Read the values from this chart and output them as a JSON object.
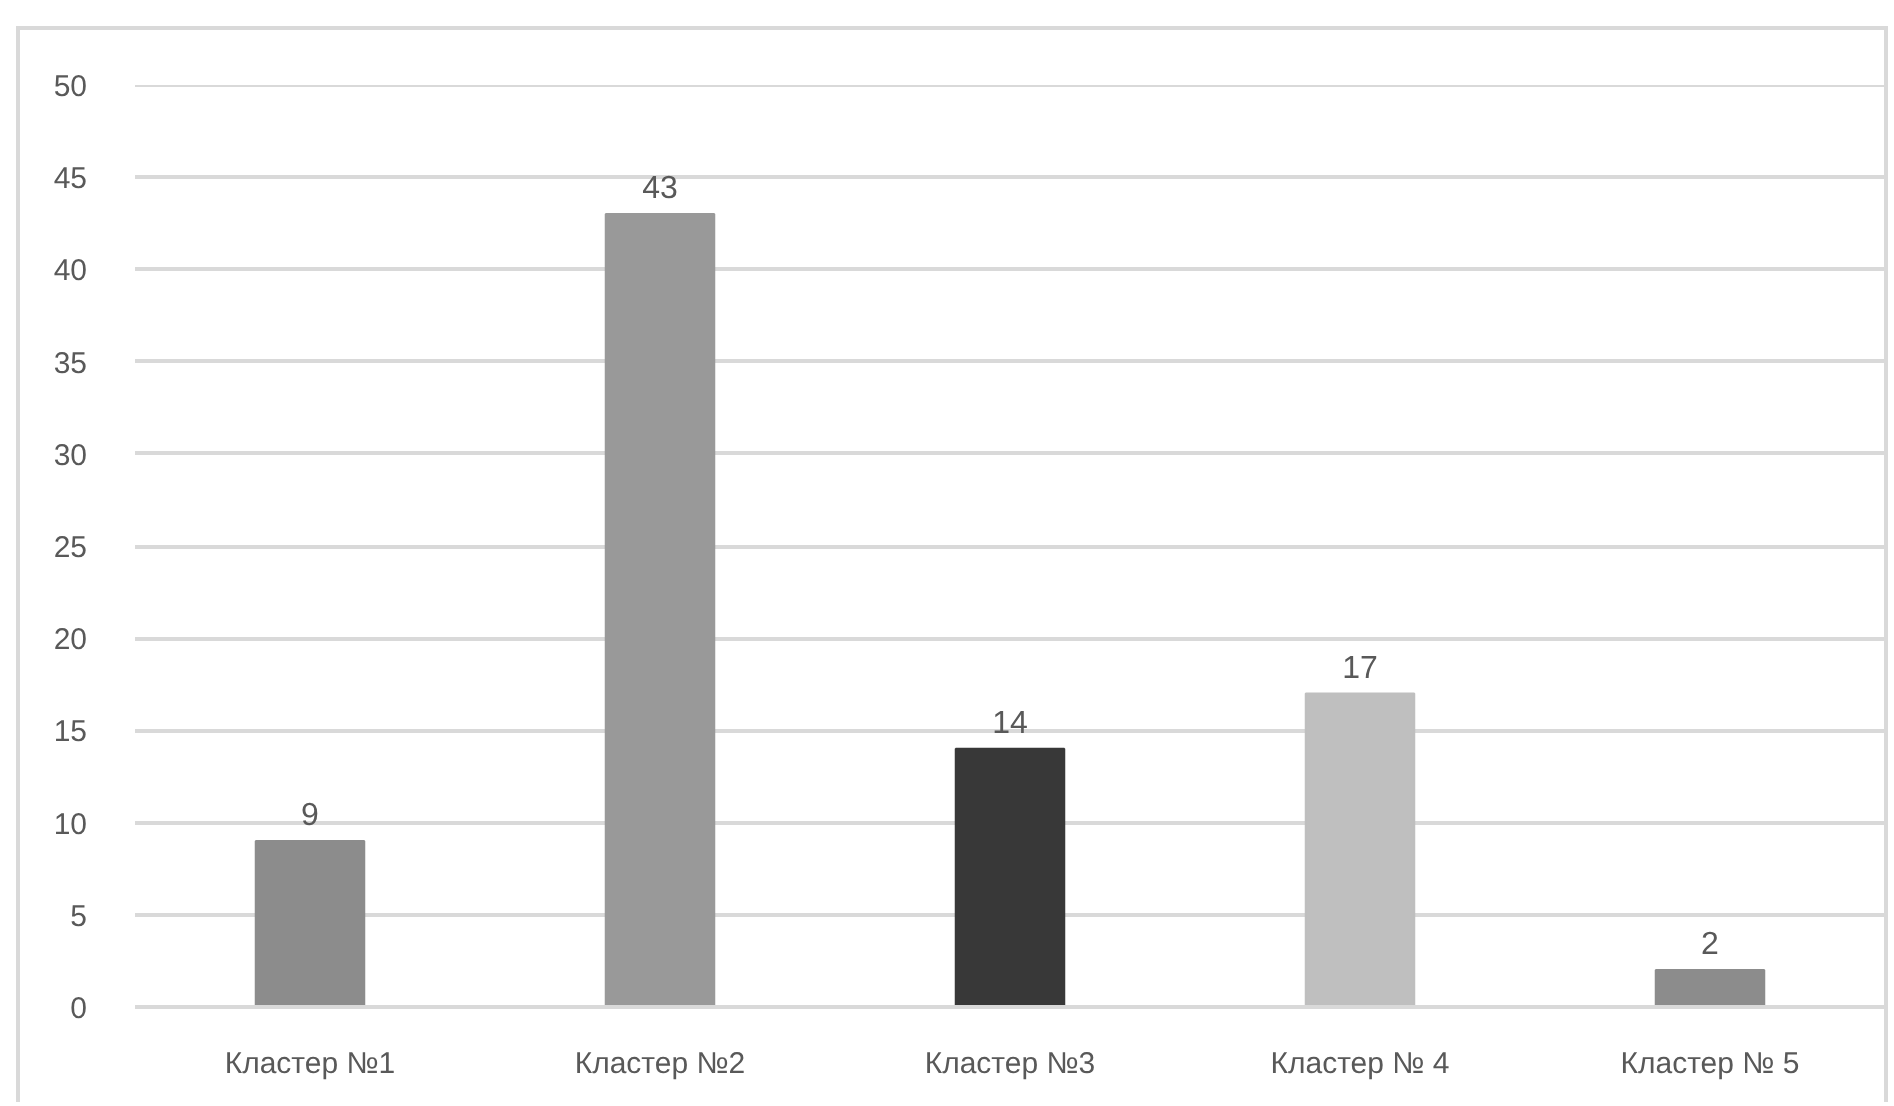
{
  "chart_data": {
    "type": "bar",
    "categories": [
      "Кластер №1",
      "Кластер №2",
      "Кластер №3",
      "Кластер № 4",
      "Кластер № 5"
    ],
    "values": [
      9,
      43,
      14,
      17,
      2
    ],
    "colors": [
      "#8c8c8c",
      "#999999",
      "#383838",
      "#bfbfbf",
      "#8c8c8c"
    ],
    "ylim": [
      0,
      50
    ],
    "yticks": [
      0,
      5,
      10,
      15,
      20,
      25,
      30,
      35,
      40,
      45,
      50
    ],
    "grid": "y",
    "data_labels": true
  }
}
